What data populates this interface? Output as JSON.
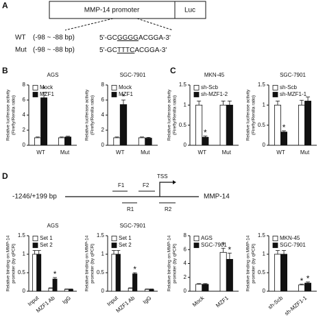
{
  "panels": [
    "A",
    "B",
    "C",
    "D"
  ],
  "promoter": {
    "box": "MMP-14 promoter",
    "reporter": "Luc",
    "rows": [
      {
        "name": "WT",
        "range": "(-98 ~ -88 bp)",
        "seq": [
          "5'-GC",
          "GGGG",
          "ACGGA-3'"
        ]
      },
      {
        "name": "Mut",
        "range": "(-98 ~ -88 bp)",
        "seq": [
          "5'-GC",
          "TTTC",
          "ACGGA-3'"
        ]
      }
    ]
  },
  "binding_diagram": {
    "range": "-1246/+199 bp",
    "gene": "MMP-14",
    "tss": "TSS",
    "primers": [
      "F1",
      "F2",
      "R1",
      "R2"
    ]
  },
  "chart_data": [
    {
      "type": "bar",
      "title": "AGS",
      "ylabel": [
        "Relative luciferase activity",
        "(Firefly/Renilla ratio)"
      ],
      "categories": [
        "WT",
        "Mut"
      ],
      "series": [
        {
          "name": "Mock",
          "color": "#ffffff",
          "values": [
            1.0,
            1.0
          ],
          "errors": [
            0.1,
            0.1
          ],
          "labels": [
            null,
            null
          ]
        },
        {
          "name": "MZF1",
          "color": "#111111",
          "values": [
            6.3,
            1.1
          ],
          "errors": [
            0.7,
            0.1
          ],
          "labels": [
            "*",
            null
          ]
        }
      ],
      "ylim": [
        0,
        8
      ],
      "yticks": [
        0,
        2,
        4,
        6,
        8
      ],
      "legend": "upper left"
    },
    {
      "type": "bar",
      "title": "SGC-7901",
      "ylabel": [
        "Relative luciferase activity",
        "(Firefly/Renilla ratio)"
      ],
      "categories": [
        "WT",
        "Mut"
      ],
      "series": [
        {
          "name": "Mock",
          "color": "#ffffff",
          "values": [
            1.0,
            1.0
          ],
          "errors": [
            0.1,
            0.1
          ],
          "labels": [
            null,
            null
          ]
        },
        {
          "name": "MZF1",
          "color": "#111111",
          "values": [
            5.4,
            0.95
          ],
          "errors": [
            0.6,
            0.1
          ],
          "labels": [
            "*",
            null
          ]
        }
      ],
      "ylim": [
        0,
        8
      ],
      "yticks": [
        0,
        2,
        4,
        6,
        8
      ],
      "legend": "upper left"
    },
    {
      "type": "bar",
      "title": "MKN-45",
      "ylabel": [
        "Relative luciferase activity",
        "(Firefly/Renilla ratio)"
      ],
      "categories": [
        "WT",
        "Mut"
      ],
      "series": [
        {
          "name": "sh-Scb",
          "color": "#ffffff",
          "values": [
            1.0,
            1.0
          ],
          "errors": [
            0.1,
            0.1
          ],
          "labels": [
            null,
            null
          ]
        },
        {
          "name": "sh-MZF1-2",
          "color": "#111111",
          "values": [
            0.2,
            1.0
          ],
          "errors": [
            0.03,
            0.1
          ],
          "labels": [
            "*",
            null
          ]
        }
      ],
      "ylim": [
        0,
        1.5
      ],
      "yticks": [
        0,
        0.5,
        1,
        1.5
      ],
      "legend": "upper left"
    },
    {
      "type": "bar",
      "title": "SGC-7901",
      "ylabel": [
        "Relative luciferase activity",
        "(Firefly/Renilla ratio)"
      ],
      "categories": [
        "WT",
        "Mut"
      ],
      "series": [
        {
          "name": "sh-Scb",
          "color": "#ffffff",
          "values": [
            1.0,
            1.0
          ],
          "errors": [
            0.1,
            0.12
          ],
          "labels": [
            null,
            null
          ]
        },
        {
          "name": "sh-MZF1-1",
          "color": "#111111",
          "values": [
            0.33,
            1.1
          ],
          "errors": [
            0.03,
            0.1
          ],
          "labels": [
            "*",
            null
          ]
        }
      ],
      "ylim": [
        0,
        1.5
      ],
      "yticks": [
        0,
        0.5,
        1,
        1.5
      ],
      "legend": "upper left"
    },
    {
      "type": "bar",
      "title": "AGS",
      "ylabel": [
        "Relative binding on MMP-14",
        "promoter (by qPCR)"
      ],
      "categories": [
        "Input",
        "MZF1 Ab",
        "IgG"
      ],
      "series": [
        {
          "name": "Set 1",
          "color": "#ffffff",
          "values": [
            1.0,
            0.08,
            0.05
          ],
          "errors": [
            0.1,
            0.01,
            0.01
          ],
          "labels": [
            null,
            null,
            null
          ]
        },
        {
          "name": "Set 2",
          "color": "#111111",
          "values": [
            1.0,
            0.33,
            0.05
          ],
          "errors": [
            0.1,
            0.04,
            0.01
          ],
          "labels": [
            null,
            "*",
            null
          ]
        }
      ],
      "ylim": [
        0,
        1.5
      ],
      "yticks": [
        0,
        0.5,
        1,
        1.5
      ],
      "legend": "upper left"
    },
    {
      "type": "bar",
      "title": "SGC-7901",
      "ylabel": [
        "Relative binding on MMP-14",
        "promoter (by qPCR)"
      ],
      "categories": [
        "Input",
        "MZF1 Ab",
        "IgG"
      ],
      "series": [
        {
          "name": "Set 1",
          "color": "#ffffff",
          "values": [
            1.0,
            0.08,
            0.05
          ],
          "errors": [
            0.1,
            0.01,
            0.01
          ],
          "labels": [
            null,
            null,
            null
          ]
        },
        {
          "name": "Set 2",
          "color": "#111111",
          "values": [
            1.0,
            0.47,
            0.05
          ],
          "errors": [
            0.1,
            0.03,
            0.01
          ],
          "labels": [
            null,
            "*",
            null
          ]
        }
      ],
      "ylim": [
        0,
        1.5
      ],
      "yticks": [
        0,
        0.5,
        1,
        1.5
      ],
      "legend": "upper left"
    },
    {
      "type": "bar",
      "ylabel": [
        "Relative binding on MMP-14",
        "promoter (by qPCR)"
      ],
      "categories": [
        "Mock",
        "MZF1"
      ],
      "series": [
        {
          "name": "AGS",
          "color": "#ffffff",
          "values": [
            1.0,
            5.6
          ],
          "errors": [
            0.1,
            0.6
          ],
          "labels": [
            null,
            "*"
          ]
        },
        {
          "name": "SGC-7901",
          "color": "#111111",
          "values": [
            1.0,
            4.6
          ],
          "errors": [
            0.1,
            0.9
          ],
          "labels": [
            null,
            "*"
          ]
        }
      ],
      "ylim": [
        0,
        8
      ],
      "yticks": [
        0,
        2,
        4,
        6,
        8
      ],
      "legend": "upper left"
    },
    {
      "type": "bar",
      "ylabel": [
        "Relative binding on MMP-14",
        "promoter (by qPCR)"
      ],
      "categories": [
        "sh-Scb",
        "sh-MZF1-1"
      ],
      "series": [
        {
          "name": "MKN-45",
          "color": "#ffffff",
          "values": [
            1.0,
            0.17
          ],
          "errors": [
            0.1,
            0.02
          ],
          "labels": [
            null,
            "*"
          ]
        },
        {
          "name": "SGC-7901",
          "color": "#111111",
          "values": [
            1.0,
            0.22
          ],
          "errors": [
            0.1,
            0.03
          ],
          "labels": [
            null,
            "*"
          ]
        }
      ],
      "ylim": [
        0,
        1.5
      ],
      "yticks": [
        0,
        0.5,
        1,
        1.5
      ],
      "legend": "upper left"
    }
  ]
}
